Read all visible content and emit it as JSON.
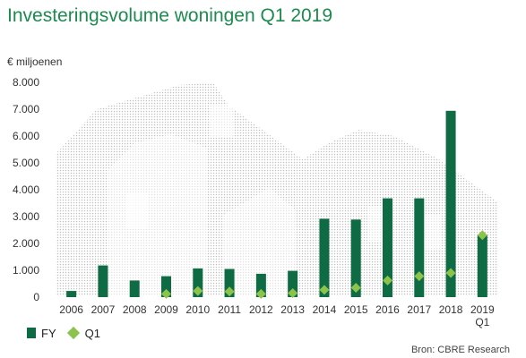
{
  "chart_data": {
    "type": "bar",
    "title": "Investeringsvolume woningen Q1 2019",
    "ylabel": "€ miljoenen",
    "ylim": [
      0,
      8000
    ],
    "y_ticks": [
      "0",
      "1.000",
      "2.000",
      "3.000",
      "4.000",
      "5.000",
      "6.000",
      "7.000",
      "8.000"
    ],
    "categories": [
      "2006",
      "2007",
      "2008",
      "2009",
      "2010",
      "2011",
      "2012",
      "2013",
      "2014",
      "2015",
      "2016",
      "2017",
      "2018",
      "2019"
    ],
    "category_sublabels": {
      "2019": "Q1"
    },
    "series": [
      {
        "name": "FY",
        "kind": "bar",
        "color": "#0f6b43",
        "values": [
          230,
          1180,
          620,
          780,
          1070,
          1050,
          870,
          980,
          2920,
          2890,
          3680,
          3680,
          6940,
          2310
        ]
      },
      {
        "name": "Q1",
        "kind": "diamond",
        "color": "#8cc34a",
        "values": [
          null,
          null,
          null,
          120,
          230,
          210,
          120,
          150,
          270,
          350,
          620,
          780,
          900,
          2310
        ]
      }
    ],
    "legend_position": "bottom-left",
    "grid": false
  },
  "source": "Bron: CBRE Research"
}
